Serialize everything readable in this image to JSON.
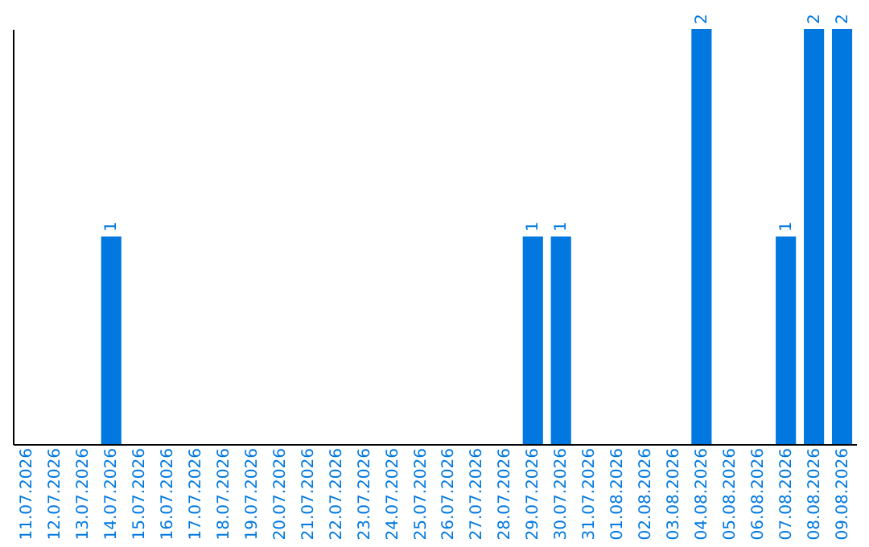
{
  "chart_data": {
    "type": "bar",
    "categories": [
      "11.07.2026",
      "12.07.2026",
      "13.07.2026",
      "14.07.2026",
      "15.07.2026",
      "16.07.2026",
      "17.07.2026",
      "18.07.2026",
      "19.07.2026",
      "20.07.2026",
      "21.07.2026",
      "22.07.2026",
      "23.07.2026",
      "24.07.2026",
      "25.07.2026",
      "26.07.2026",
      "27.07.2026",
      "28.07.2026",
      "29.07.2026",
      "30.07.2026",
      "31.07.2026",
      "01.08.2026",
      "02.08.2026",
      "03.08.2026",
      "04.08.2026",
      "05.08.2026",
      "06.08.2026",
      "07.08.2026",
      "08.08.2026",
      "09.08.2026"
    ],
    "values": [
      0,
      0,
      0,
      1,
      0,
      0,
      0,
      0,
      0,
      0,
      0,
      0,
      0,
      0,
      0,
      0,
      0,
      0,
      1,
      1,
      0,
      0,
      0,
      0,
      2,
      0,
      0,
      1,
      2,
      2
    ],
    "value_labels": [
      null,
      null,
      null,
      "1",
      null,
      null,
      null,
      null,
      null,
      null,
      null,
      null,
      null,
      null,
      null,
      null,
      null,
      null,
      "1",
      "1",
      null,
      null,
      null,
      null,
      "2",
      null,
      null,
      "1",
      "2",
      "2"
    ],
    "color": "#0078e0",
    "grid": false
  }
}
